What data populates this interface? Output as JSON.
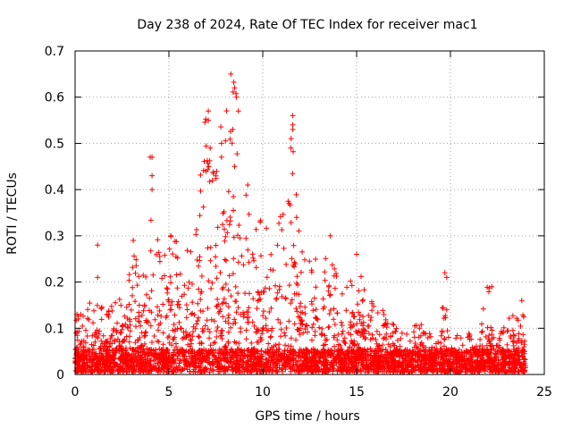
{
  "chart_data": {
    "type": "scatter",
    "title": "Day 238 of 2024, Rate Of TEC Index for receiver mac1",
    "xlabel": "GPS time / hours",
    "ylabel": "ROTI / TECUs",
    "xlim": [
      0,
      25
    ],
    "ylim": [
      0,
      0.7
    ],
    "xticks": [
      0,
      5,
      10,
      15,
      20,
      25
    ],
    "yticks": [
      0,
      0.1,
      0.2,
      0.3,
      0.4,
      0.5,
      0.6,
      0.7
    ],
    "grid": true,
    "marker": "+",
    "color": "#ff0000",
    "activity_envelope": [
      {
        "x": 0.0,
        "y": 0.13
      },
      {
        "x": 0.5,
        "y": 0.12
      },
      {
        "x": 1.0,
        "y": 0.17
      },
      {
        "x": 1.5,
        "y": 0.13
      },
      {
        "x": 2.0,
        "y": 0.14
      },
      {
        "x": 2.5,
        "y": 0.17
      },
      {
        "x": 3.0,
        "y": 0.29
      },
      {
        "x": 3.5,
        "y": 0.22
      },
      {
        "x": 4.0,
        "y": 0.47
      },
      {
        "x": 4.5,
        "y": 0.25
      },
      {
        "x": 5.0,
        "y": 0.3
      },
      {
        "x": 5.5,
        "y": 0.28
      },
      {
        "x": 6.0,
        "y": 0.3
      },
      {
        "x": 6.5,
        "y": 0.38
      },
      {
        "x": 7.0,
        "y": 0.57
      },
      {
        "x": 7.5,
        "y": 0.5
      },
      {
        "x": 8.0,
        "y": 0.55
      },
      {
        "x": 8.5,
        "y": 0.65
      },
      {
        "x": 9.0,
        "y": 0.41
      },
      {
        "x": 9.5,
        "y": 0.3
      },
      {
        "x": 10.0,
        "y": 0.33
      },
      {
        "x": 10.5,
        "y": 0.3
      },
      {
        "x": 11.0,
        "y": 0.34
      },
      {
        "x": 11.5,
        "y": 0.56
      },
      {
        "x": 12.0,
        "y": 0.26
      },
      {
        "x": 12.5,
        "y": 0.26
      },
      {
        "x": 13.0,
        "y": 0.24
      },
      {
        "x": 13.5,
        "y": 0.3
      },
      {
        "x": 14.0,
        "y": 0.2
      },
      {
        "x": 14.5,
        "y": 0.18
      },
      {
        "x": 15.0,
        "y": 0.26
      },
      {
        "x": 15.5,
        "y": 0.18
      },
      {
        "x": 16.0,
        "y": 0.13
      },
      {
        "x": 16.5,
        "y": 0.13
      },
      {
        "x": 17.0,
        "y": 0.1
      },
      {
        "x": 17.5,
        "y": 0.08
      },
      {
        "x": 18.0,
        "y": 0.12
      },
      {
        "x": 18.5,
        "y": 0.1
      },
      {
        "x": 19.0,
        "y": 0.09
      },
      {
        "x": 19.5,
        "y": 0.13
      },
      {
        "x": 19.7,
        "y": 0.22
      },
      {
        "x": 20.0,
        "y": 0.09
      },
      {
        "x": 20.5,
        "y": 0.07
      },
      {
        "x": 21.0,
        "y": 0.08
      },
      {
        "x": 21.5,
        "y": 0.11
      },
      {
        "x": 22.0,
        "y": 0.19
      },
      {
        "x": 22.5,
        "y": 0.1
      },
      {
        "x": 23.0,
        "y": 0.1
      },
      {
        "x": 23.5,
        "y": 0.16
      },
      {
        "x": 24.0,
        "y": 0.16
      }
    ],
    "notable_points": [
      {
        "x": 8.3,
        "y": 0.65
      },
      {
        "x": 8.5,
        "y": 0.62
      },
      {
        "x": 8.6,
        "y": 0.6
      },
      {
        "x": 8.7,
        "y": 0.57
      },
      {
        "x": 7.1,
        "y": 0.57
      },
      {
        "x": 7.1,
        "y": 0.55
      },
      {
        "x": 8.4,
        "y": 0.53
      },
      {
        "x": 11.6,
        "y": 0.56
      },
      {
        "x": 11.6,
        "y": 0.54
      },
      {
        "x": 11.5,
        "y": 0.49
      },
      {
        "x": 11.6,
        "y": 0.53
      },
      {
        "x": 7.8,
        "y": 0.5
      },
      {
        "x": 7.8,
        "y": 0.47
      },
      {
        "x": 7.2,
        "y": 0.49
      },
      {
        "x": 4.1,
        "y": 0.47
      },
      {
        "x": 4.0,
        "y": 0.47
      },
      {
        "x": 4.1,
        "y": 0.43
      },
      {
        "x": 4.1,
        "y": 0.4
      },
      {
        "x": 8.5,
        "y": 0.45
      },
      {
        "x": 9.2,
        "y": 0.41
      },
      {
        "x": 3.1,
        "y": 0.29
      },
      {
        "x": 1.2,
        "y": 0.28
      },
      {
        "x": 1.2,
        "y": 0.21
      },
      {
        "x": 5.1,
        "y": 0.3
      },
      {
        "x": 13.6,
        "y": 0.3
      },
      {
        "x": 11.8,
        "y": 0.34
      },
      {
        "x": 11.4,
        "y": 0.37
      },
      {
        "x": 15.0,
        "y": 0.26
      },
      {
        "x": 19.7,
        "y": 0.22
      },
      {
        "x": 19.8,
        "y": 0.21
      },
      {
        "x": 19.8,
        "y": 0.14
      },
      {
        "x": 22.2,
        "y": 0.19
      },
      {
        "x": 23.8,
        "y": 0.16
      },
      {
        "x": 0.1,
        "y": 0.13
      },
      {
        "x": 1.7,
        "y": 0.13
      }
    ]
  }
}
